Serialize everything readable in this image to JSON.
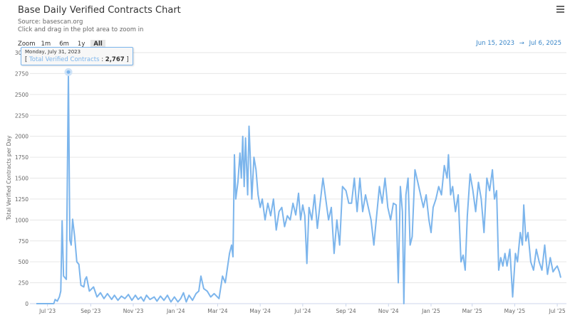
{
  "header": {
    "title": "Base Daily Verified Contracts Chart",
    "source": "Source: basescan.org",
    "hint": "Click and drag in the plot area to zoom in",
    "menu_icon": "hamburger-icon"
  },
  "zoom": {
    "label": "Zoom",
    "buttons": [
      "1m",
      "6m",
      "1y",
      "All"
    ],
    "active": "All"
  },
  "range": {
    "from": "Jun 15, 2023",
    "arrow": "→",
    "to": "Jul 6, 2025"
  },
  "tooltip": {
    "date": "Monday, July 31, 2023",
    "open": "[",
    "label": "Total Verified Contracts",
    "sep": ":",
    "value": "2,767",
    "close": "]"
  },
  "chart_data": {
    "type": "line",
    "title": "Base Daily Verified Contracts Chart",
    "ylabel": "Total Verified Contracts per Day",
    "ylim": [
      0,
      3000
    ],
    "yticks": [
      0,
      250,
      500,
      750,
      1000,
      1250,
      1500,
      1750,
      2000,
      2250,
      2500,
      2750,
      3000
    ],
    "xlim": [
      "2023-06-15",
      "2025-07-06"
    ],
    "xticks": [
      [
        "2023-07-01",
        "Jul '23"
      ],
      [
        "2023-09-01",
        "Sep '23"
      ],
      [
        "2023-11-01",
        "Nov '23"
      ],
      [
        "2024-01-01",
        "Jan '24"
      ],
      [
        "2024-03-01",
        "Mar '24"
      ],
      [
        "2024-05-01",
        "May '24"
      ],
      [
        "2024-07-01",
        "Jul '24"
      ],
      [
        "2024-09-01",
        "Sep '24"
      ],
      [
        "2024-11-01",
        "Nov '24"
      ],
      [
        "2025-01-01",
        "Jan '25"
      ],
      [
        "2025-03-01",
        "Mar '25"
      ],
      [
        "2025-05-01",
        "May '25"
      ],
      [
        "2025-07-01",
        "Jul '25"
      ]
    ],
    "grid": true,
    "color": "#7cb5ec",
    "highlight": [
      "2023-07-31",
      2767
    ],
    "points": [
      [
        "2023-06-15",
        0
      ],
      [
        "2023-07-10",
        0
      ],
      [
        "2023-07-12",
        50
      ],
      [
        "2023-07-15",
        30
      ],
      [
        "2023-07-18",
        80
      ],
      [
        "2023-07-20",
        150
      ],
      [
        "2023-07-22",
        990
      ],
      [
        "2023-07-24",
        330
      ],
      [
        "2023-07-28",
        290
      ],
      [
        "2023-07-31",
        2767
      ],
      [
        "2023-08-02",
        760
      ],
      [
        "2023-08-04",
        700
      ],
      [
        "2023-08-06",
        1010
      ],
      [
        "2023-08-09",
        800
      ],
      [
        "2023-08-12",
        500
      ],
      [
        "2023-08-15",
        470
      ],
      [
        "2023-08-18",
        220
      ],
      [
        "2023-08-22",
        200
      ],
      [
        "2023-08-24",
        290
      ],
      [
        "2023-08-26",
        320
      ],
      [
        "2023-08-30",
        150
      ],
      [
        "2023-09-05",
        200
      ],
      [
        "2023-09-10",
        80
      ],
      [
        "2023-09-15",
        130
      ],
      [
        "2023-09-20",
        60
      ],
      [
        "2023-09-25",
        120
      ],
      [
        "2023-10-01",
        50
      ],
      [
        "2023-10-05",
        100
      ],
      [
        "2023-10-10",
        40
      ],
      [
        "2023-10-15",
        90
      ],
      [
        "2023-10-20",
        60
      ],
      [
        "2023-10-25",
        110
      ],
      [
        "2023-10-30",
        40
      ],
      [
        "2023-11-04",
        100
      ],
      [
        "2023-11-08",
        50
      ],
      [
        "2023-11-12",
        80
      ],
      [
        "2023-11-16",
        30
      ],
      [
        "2023-11-20",
        100
      ],
      [
        "2023-11-25",
        50
      ],
      [
        "2023-12-01",
        80
      ],
      [
        "2023-12-05",
        30
      ],
      [
        "2023-12-10",
        90
      ],
      [
        "2023-12-15",
        40
      ],
      [
        "2023-12-20",
        100
      ],
      [
        "2023-12-25",
        20
      ],
      [
        "2023-12-30",
        80
      ],
      [
        "2024-01-04",
        20
      ],
      [
        "2024-01-08",
        60
      ],
      [
        "2024-01-12",
        130
      ],
      [
        "2024-01-16",
        20
      ],
      [
        "2024-01-20",
        100
      ],
      [
        "2024-01-25",
        40
      ],
      [
        "2024-01-30",
        120
      ],
      [
        "2024-02-03",
        150
      ],
      [
        "2024-02-06",
        330
      ],
      [
        "2024-02-10",
        180
      ],
      [
        "2024-02-15",
        150
      ],
      [
        "2024-02-20",
        80
      ],
      [
        "2024-02-25",
        120
      ],
      [
        "2024-03-03",
        60
      ],
      [
        "2024-03-08",
        330
      ],
      [
        "2024-03-12",
        250
      ],
      [
        "2024-03-18",
        600
      ],
      [
        "2024-03-21",
        700
      ],
      [
        "2024-03-23",
        560
      ],
      [
        "2024-03-25",
        1780
      ],
      [
        "2024-03-27",
        1250
      ],
      [
        "2024-03-30",
        1450
      ],
      [
        "2024-04-02",
        1800
      ],
      [
        "2024-04-04",
        1500
      ],
      [
        "2024-04-06",
        2000
      ],
      [
        "2024-04-08",
        1400
      ],
      [
        "2024-04-10",
        1980
      ],
      [
        "2024-04-13",
        1300
      ],
      [
        "2024-04-15",
        2120
      ],
      [
        "2024-04-17",
        1700
      ],
      [
        "2024-04-19",
        1250
      ],
      [
        "2024-04-22",
        1750
      ],
      [
        "2024-04-25",
        1600
      ],
      [
        "2024-04-28",
        1300
      ],
      [
        "2024-05-01",
        1150
      ],
      [
        "2024-05-04",
        1250
      ],
      [
        "2024-05-08",
        1000
      ],
      [
        "2024-05-12",
        1200
      ],
      [
        "2024-05-16",
        1050
      ],
      [
        "2024-05-20",
        1250
      ],
      [
        "2024-05-24",
        880
      ],
      [
        "2024-05-28",
        1100
      ],
      [
        "2024-06-01",
        1150
      ],
      [
        "2024-06-05",
        920
      ],
      [
        "2024-06-09",
        1050
      ],
      [
        "2024-06-13",
        1000
      ],
      [
        "2024-06-17",
        1200
      ],
      [
        "2024-06-21",
        1060
      ],
      [
        "2024-06-25",
        1320
      ],
      [
        "2024-06-28",
        1000
      ],
      [
        "2024-07-01",
        1180
      ],
      [
        "2024-07-04",
        1050
      ],
      [
        "2024-07-07",
        480
      ],
      [
        "2024-07-10",
        1150
      ],
      [
        "2024-07-14",
        1000
      ],
      [
        "2024-07-18",
        1300
      ],
      [
        "2024-07-22",
        900
      ],
      [
        "2024-07-26",
        1200
      ],
      [
        "2024-07-30",
        1500
      ],
      [
        "2024-08-03",
        1250
      ],
      [
        "2024-08-07",
        1000
      ],
      [
        "2024-08-11",
        1150
      ],
      [
        "2024-08-15",
        600
      ],
      [
        "2024-08-19",
        1000
      ],
      [
        "2024-08-23",
        700
      ],
      [
        "2024-08-27",
        1400
      ],
      [
        "2024-09-01",
        1350
      ],
      [
        "2024-09-05",
        1200
      ],
      [
        "2024-09-09",
        1200
      ],
      [
        "2024-09-13",
        1500
      ],
      [
        "2024-09-17",
        1100
      ],
      [
        "2024-09-21",
        1500
      ],
      [
        "2024-09-25",
        1100
      ],
      [
        "2024-09-29",
        1300
      ],
      [
        "2024-10-03",
        1150
      ],
      [
        "2024-10-07",
        1000
      ],
      [
        "2024-10-11",
        700
      ],
      [
        "2024-10-15",
        1050
      ],
      [
        "2024-10-19",
        1400
      ],
      [
        "2024-10-23",
        1200
      ],
      [
        "2024-10-27",
        1500
      ],
      [
        "2024-10-31",
        1150
      ],
      [
        "2024-11-04",
        1000
      ],
      [
        "2024-11-08",
        1200
      ],
      [
        "2024-11-12",
        1180
      ],
      [
        "2024-11-15",
        250
      ],
      [
        "2024-11-18",
        1400
      ],
      [
        "2024-11-21",
        1100
      ],
      [
        "2024-11-23",
        0
      ],
      [
        "2024-11-26",
        1300
      ],
      [
        "2024-11-29",
        1500
      ],
      [
        "2024-12-02",
        700
      ],
      [
        "2024-12-05",
        800
      ],
      [
        "2024-12-09",
        1600
      ],
      [
        "2024-12-13",
        1450
      ],
      [
        "2024-12-17",
        1300
      ],
      [
        "2024-12-21",
        1150
      ],
      [
        "2024-12-25",
        1300
      ],
      [
        "2024-12-29",
        1000
      ],
      [
        "2025-01-01",
        850
      ],
      [
        "2025-01-04",
        1150
      ],
      [
        "2025-01-08",
        1250
      ],
      [
        "2025-01-12",
        1400
      ],
      [
        "2025-01-16",
        1300
      ],
      [
        "2025-01-20",
        1650
      ],
      [
        "2025-01-24",
        1500
      ],
      [
        "2025-01-26",
        1780
      ],
      [
        "2025-01-29",
        1300
      ],
      [
        "2025-02-01",
        1400
      ],
      [
        "2025-02-05",
        1100
      ],
      [
        "2025-02-09",
        1300
      ],
      [
        "2025-02-13",
        500
      ],
      [
        "2025-02-16",
        580
      ],
      [
        "2025-02-19",
        400
      ],
      [
        "2025-02-22",
        1050
      ],
      [
        "2025-02-26",
        1550
      ],
      [
        "2025-03-02",
        1350
      ],
      [
        "2025-03-06",
        1100
      ],
      [
        "2025-03-10",
        1450
      ],
      [
        "2025-03-14",
        1250
      ],
      [
        "2025-03-18",
        850
      ],
      [
        "2025-03-22",
        1500
      ],
      [
        "2025-03-26",
        1350
      ],
      [
        "2025-03-30",
        1600
      ],
      [
        "2025-04-02",
        1250
      ],
      [
        "2025-04-05",
        1350
      ],
      [
        "2025-04-08",
        400
      ],
      [
        "2025-04-11",
        550
      ],
      [
        "2025-04-14",
        450
      ],
      [
        "2025-04-17",
        600
      ],
      [
        "2025-04-20",
        450
      ],
      [
        "2025-04-24",
        650
      ],
      [
        "2025-04-28",
        80
      ],
      [
        "2025-05-02",
        600
      ],
      [
        "2025-05-05",
        500
      ],
      [
        "2025-05-09",
        850
      ],
      [
        "2025-05-12",
        700
      ],
      [
        "2025-05-14",
        1180
      ],
      [
        "2025-05-17",
        750
      ],
      [
        "2025-05-20",
        850
      ],
      [
        "2025-05-24",
        500
      ],
      [
        "2025-05-28",
        400
      ],
      [
        "2025-06-01",
        650
      ],
      [
        "2025-06-05",
        500
      ],
      [
        "2025-06-09",
        400
      ],
      [
        "2025-06-13",
        700
      ],
      [
        "2025-06-17",
        350
      ],
      [
        "2025-06-21",
        550
      ],
      [
        "2025-06-25",
        380
      ],
      [
        "2025-06-28",
        420
      ],
      [
        "2025-07-01",
        450
      ],
      [
        "2025-07-04",
        380
      ],
      [
        "2025-07-06",
        310
      ]
    ]
  }
}
